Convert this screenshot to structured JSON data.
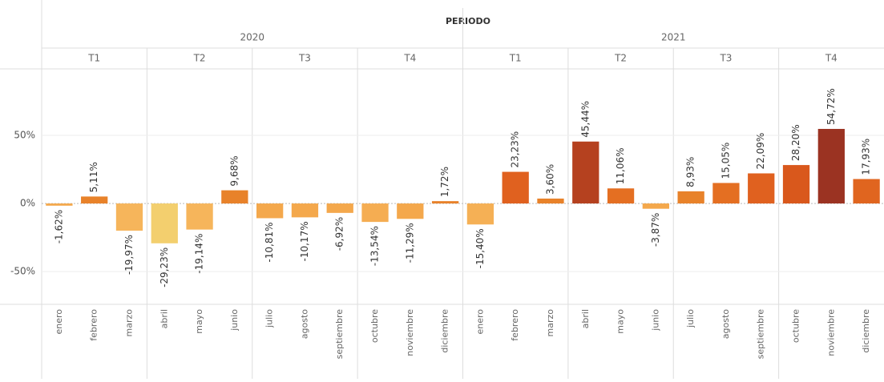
{
  "chart_data": {
    "type": "bar",
    "header_title": "PERIODO",
    "years": [
      {
        "label": "2020",
        "quarters": [
          "T1",
          "T2",
          "T3",
          "T4"
        ]
      },
      {
        "label": "2021",
        "quarters": [
          "T1",
          "T2",
          "T3",
          "T4"
        ]
      }
    ],
    "categories": [
      "enero",
      "febrero",
      "marzo",
      "abril",
      "mayo",
      "junio",
      "julio",
      "agosto",
      "septiembre",
      "octubre",
      "noviembre",
      "diciembre",
      "enero",
      "febrero",
      "marzo",
      "abril",
      "mayo",
      "junio",
      "julio",
      "agosto",
      "septiembre",
      "octubre",
      "noviembre",
      "diciembre"
    ],
    "values": [
      -1.62,
      5.11,
      -19.97,
      -29.23,
      -19.14,
      9.68,
      -10.81,
      -10.17,
      -6.92,
      -13.54,
      -11.29,
      1.72,
      -15.4,
      23.23,
      3.6,
      45.44,
      11.06,
      -3.87,
      8.93,
      15.05,
      22.09,
      28.2,
      54.72,
      17.93
    ],
    "value_labels": [
      "-1,62%",
      "5,11%",
      "-19,97%",
      "-29,23%",
      "-19,14%",
      "9,68%",
      "-10,81%",
      "-10,17%",
      "-6,92%",
      "-13,54%",
      "-11,29%",
      "1,72%",
      "-15,40%",
      "23,23%",
      "3,60%",
      "45,44%",
      "11,06%",
      "-3,87%",
      "8,93%",
      "15,05%",
      "22,09%",
      "28,20%",
      "54,72%",
      "17,93%"
    ],
    "colors": [
      "#f4a84c",
      "#e8822a",
      "#f6b55b",
      "#f3cf6e",
      "#f6b55b",
      "#e8822a",
      "#f4a84c",
      "#f4a84c",
      "#f4a84c",
      "#f5ad52",
      "#f4a84c",
      "#e8822a",
      "#f5b055",
      "#e0611f",
      "#e8822a",
      "#b5411f",
      "#e46f22",
      "#f4a84c",
      "#e8822a",
      "#e46f22",
      "#e0611f",
      "#d9581c",
      "#9b3322",
      "#e0651f"
    ],
    "ylim": [
      -74,
      97.6
    ],
    "yticks": [
      {
        "value": -50,
        "label": "-50%"
      },
      {
        "value": 0,
        "label": "0%"
      },
      {
        "value": 50,
        "label": "50%"
      }
    ],
    "grid": true
  }
}
